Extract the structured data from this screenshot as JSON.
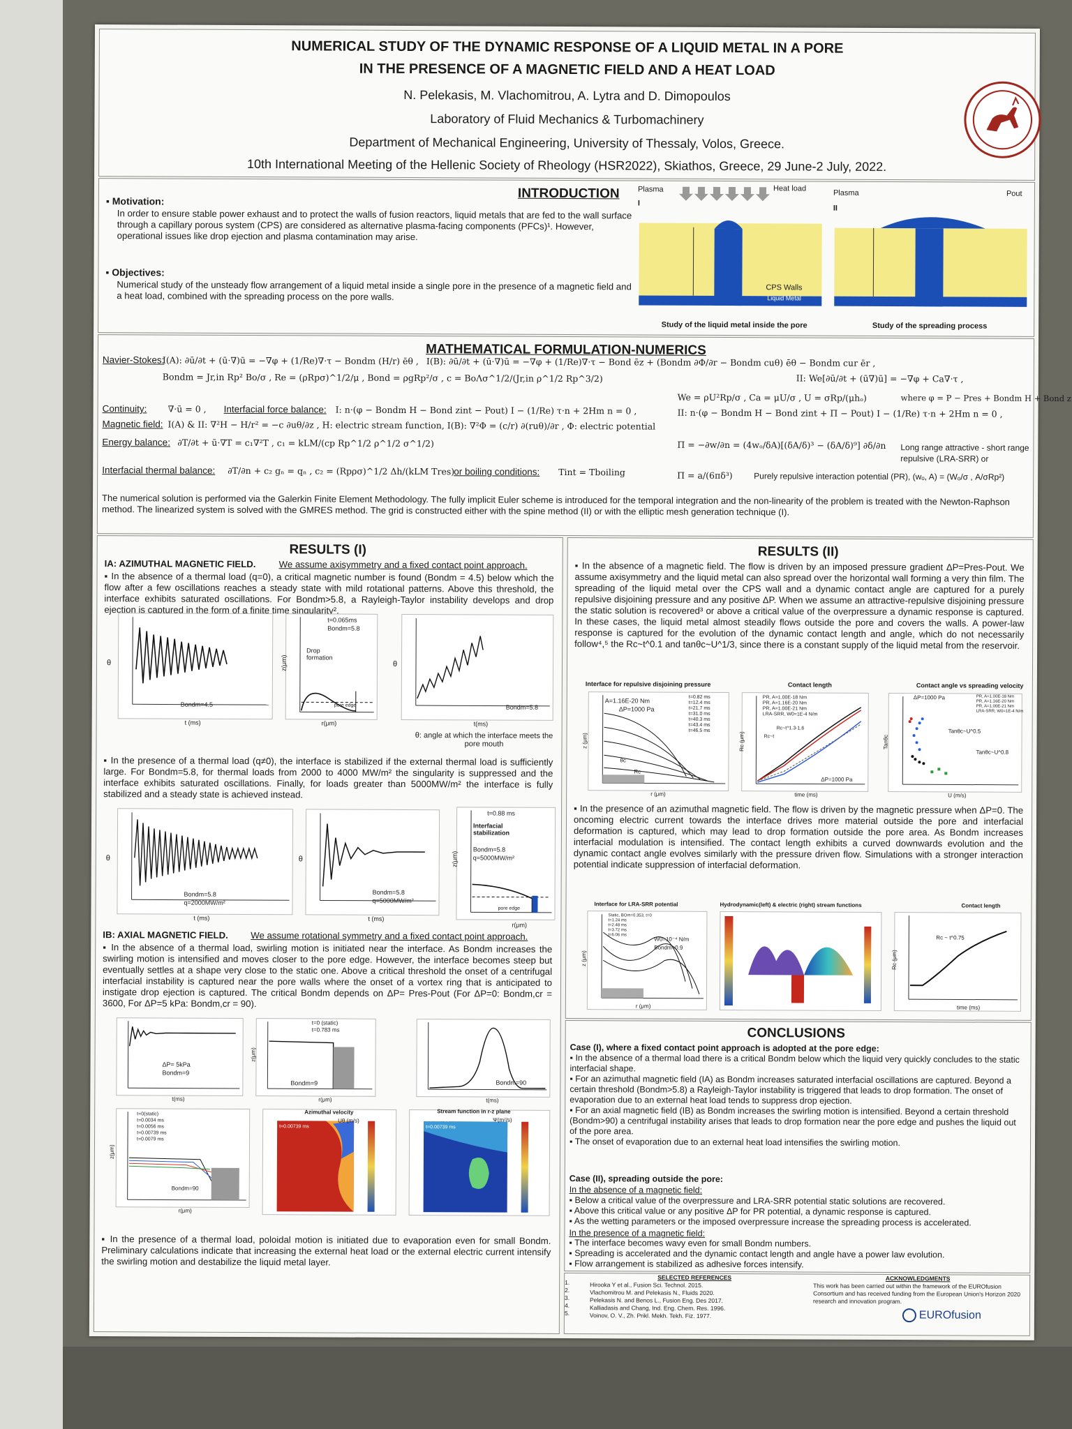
{
  "header": {
    "title_line1": "NUMERICAL STUDY OF THE DYNAMIC RESPONSE OF A LIQUID METAL IN A PORE",
    "title_line2": "IN THE PRESENCE OF A MAGNETIC FIELD AND A HEAT LOAD",
    "authors": "N. Pelekasis, M. Vlachomitrou, A. Lytra and D. Dimopoulos",
    "lab": "Laboratory of Fluid Mechanics & Turbomachinery",
    "department": "Department of Mechanical Engineering, University of Thessaly, Volos, Greece.",
    "meeting": "10th International Meeting of the Hellenic Society of Rheology (HSR2022), Skiathos, Greece, 29 June-2 July, 2022."
  },
  "intro": {
    "heading": "INTRODUCTION",
    "motivation_label": "Motivation:",
    "motivation_text": "In order to ensure stable power exhaust and to protect the walls of fusion reactors, liquid metals that are fed to the wall surface through a capillary porous system (CPS) are considered as alternative plasma-facing components (PFCs)¹. However, operational issues like drop ejection and plasma contamination may arise.",
    "objectives_label": "Objectives:",
    "objectives_text": "Numerical study of the unsteady flow arrangement of a liquid metal inside a single pore in the presence of a magnetic field and a heat load, combined with the spreading process on the pore walls.",
    "fig1": {
      "plasma": "Plasma",
      "heat": "Heat load",
      "roman": "I",
      "walls": "CPS Walls",
      "metal": "Liquid Metal",
      "caption": "Study of the liquid metal inside the pore"
    },
    "fig2": {
      "plasma": "Plasma",
      "roman": "II",
      "pout": "Pout",
      "caption": "Study of the spreading process"
    }
  },
  "math": {
    "heading": "MATHEMATICAL FORMULATION-NUMERICS",
    "ns_label": "Navier-Stokes:",
    "ns_eq1": "I(A): ∂ū/∂t + (ū·∇)ū = −∇φ + (1/Re)∇·τ − Bondm (H/r) ēθ ,",
    "ns_eq2": "I(B): ∂ū/∂t + (ū·∇)ū = −∇φ + (1/Re)∇·τ − Bond ēz + (Bondm ∂Φ/∂r − Bondm cuθ) ēθ − Bondm cur ēr ,",
    "ns_eq3": "II: We[∂ū/∂t + (ū∇)ū] = −∇φ + Ca∇·τ ,",
    "dimless": "Bondm = Jr,in Rp² Bo/σ ,  Re = (ρRpσ)^1/2/μ ,  Bond = ρgRp²/σ ,  c = BoΛσ^1/2/(Jr,in ρ^1/2 Rp^3/2)",
    "dimless2": "We = ρU²Rp/σ ,  Ca = μU/σ ,  U = σRp/(μhₒ)",
    "where": "where φ = P − Pres + Bondm H + Bond z",
    "cont_label": "Continuity:",
    "cont_eq": "∇·ū = 0 ,",
    "ifb_label": "Interfacial force balance:",
    "ifb_eq": "I: n·(φ − Bondm H − Bond zint − Pout) I − (1/Re) τ·n + 2Hm n = 0 ,",
    "ifb_eq2": "II: n·(φ − Bondm H − Bond zint + Π − Pout) I − (1/Re) τ·n + 2Hm n = 0 ,",
    "mag_label": "Magnetic field:",
    "mag_eq": "I(A) & II: ∇²H − H/r² = −c ∂uθ/∂z ,  H: electric stream function,   I(B): ∇²Φ = (c/r) ∂(ruθ)/∂r ,  Φ: electric potential",
    "energy_label": "Energy balance:",
    "energy_eq": "∂T/∂t + ū·∇T = c₁∇²T ,    c₁ = kLM/(cp Rp^1/2 ρ^1/2 σ^1/2)",
    "lra_eq": "Π = −∂w/∂n = (4wₒ/δA)[(δA/δ)³ − (δA/δ)⁹] ∂δ/∂n",
    "lra_text": "Long range attractive - short range repulsive (LRA-SRR) or",
    "itb_label": "Interfacial thermal balance:",
    "itb_eq": "∂T/∂n + c₂ gₙ = qₙ ,    c₂ = (Rpρσ)^1/2 Δh/(kLM Tres)",
    "boil_label": "or boiling conditions:",
    "boil_eq": "Tint = Tboiling",
    "pr_eq": "Π = a/(6πδ³)",
    "pr_text": "Purely repulsive interaction potential (PR),  (wₒ, A) = (Wₒ/σ , A/σRp²)",
    "numerics": "The numerical solution is performed via the Galerkin Finite Element Methodology. The fully implicit Euler scheme is introduced for the temporal integration and the non-linearity of the problem is treated with the Newton-Raphson method. The linearized system is solved with the GMRES method. The grid is constructed either with the spine method (II) or with the elliptic mesh generation technique (I)."
  },
  "results1": {
    "heading": "RESULTS (I)",
    "ia_title": "IA: AZIMUTHAL MAGNETIC FIELD.",
    "ia_intro": "We assume axisymmetry and a fixed contact point approach.",
    "ia_p1": "In the absence of a thermal load (q=0), a critical magnetic number is found (Bondm = 4.5) below which the flow after a few oscillations reaches a steady state with mild rotational patterns. Above this threshold, the interface exhibits saturated oscillations. For Bondm>5.8, a Rayleigh-Taylor instability develops and drop ejection is captured in the form of a finite time singularity².",
    "fig_a": {
      "ylabel": "θ",
      "xlabel": "t (ms)",
      "label": "Bondm=4.5"
    },
    "fig_b": {
      "legend": "t=0.065ms",
      "bond": "Bondm=5.8",
      "drop": "Drop formation",
      "ylabel": "z(μm)",
      "xlabel": "r(μm)",
      "edge": "pore edge"
    },
    "fig_c": {
      "ylabel": "θ",
      "xlabel": "t(ms)",
      "label": "Bondm=5.8"
    },
    "theta_note": "θ: angle at which the interface meets the pore mouth",
    "ia_p2": "In the presence of a thermal load (q≠0), the interface is stabilized if the external thermal load is sufficiently large. For Bondm=5.8, for thermal loads from 2000 to 4000 MW/m² the singularity is suppressed and the interface exhibits saturated oscillations. Finally, for loads greater than 5000MW/m² the interface is fully stabilized and a steady state is achieved instead.",
    "fig_d": {
      "ylabel": "θ",
      "xlabel": "t (ms)",
      "label1": "Bondm=5.8",
      "label2": "q=2000MW/m²"
    },
    "fig_e": {
      "ylabel": "θ",
      "xlabel": "t (ms)",
      "label1": "Bondm=5.8",
      "label2": "q=5000MW/m²"
    },
    "fig_f": {
      "legend": "t=0.88 ms",
      "stab": "Interfacial stabilization",
      "bond": "Bondm=5.8",
      "q": "q=5000MW/m²",
      "ylabel": "z(μm)",
      "xlabel": "r(μm)",
      "edge": "pore edge"
    },
    "ib_title": "IB: AXIAL MAGNETIC FIELD.",
    "ib_intro": "We assume rotational symmetry and a fixed contact point approach.",
    "ib_p1": "In the absence of a thermal load, swirling motion is initiated near the interface. As Bondm increases the swirling motion is intensified and moves closer to the pore edge. However, the interface becomes steep but eventually settles at a shape very close to the static one. Above a critical threshold the onset of a centrifugal interfacial instability is captured near the pore walls where the onset of a vortex ring that is anticipated to instigate drop ejection is captured. The critical Bondm depends on ΔP= Pres-Pout (For ΔP=0: Bondm,cr = 3600, For ΔP=5 kPa: Bondm,cr = 90).",
    "fig_g": {
      "label1": "ΔP= 5kPa",
      "label2": "Bondm=9",
      "xlabel": "t(ms)"
    },
    "fig_h": {
      "legend1": "t=0 (static)",
      "legend2": "t=0.783 ms",
      "label": "Bondm=9",
      "ylabel": "z(μm)",
      "xlabel": "r(μm)"
    },
    "fig_i": {
      "label": "Bondm=90",
      "xlabel": "t(ms)"
    },
    "fig_j": {
      "legend": [
        "t=0(static)",
        "t=0.0034 ms",
        "t=0.0056 ms",
        "t=0.00739 ms",
        "t=0.0079 ms"
      ],
      "label": "Bondm=90",
      "ylabel": "z(μm)",
      "xlabel": "r(μm)"
    },
    "fig_k": {
      "title": "Azimuthal velocity",
      "unit": "Uθ (m/s)",
      "label1": "Bondm=90",
      "label2": "t=0.00739 ms"
    },
    "fig_l": {
      "title": "Stream function in r-z plane",
      "unit": "Ψ(m²/s)",
      "label1": "Bondm=90",
      "label2": "t=0.00739 ms"
    },
    "ib_p2": "In the presence of a thermal load, poloidal motion is initiated due to evaporation even for small Bondm. Preliminary calculations indicate that increasing the external heat load or the external electric current intensify the swirling motion and destabilize the liquid metal layer."
  },
  "results2": {
    "heading": "RESULTS (II)",
    "p1": "In the absence of a magnetic field. The flow is driven by an imposed pressure gradient ΔP=Pres-Pout. We assume axisymmetry and the liquid metal can also spread over the horizontal wall forming a very thin film. The spreading of the liquid metal over the CPS wall and a dynamic contact angle are captured for a purely repulsive disjoining pressure and any positive ΔP. When we assume an attractive-repulsive disjoining pressure the static solution is recovered³ or above a critical value of the overpressure a dynamic response is captured. In these cases, the liquid metal almost steadily flows outside the pore and covers the walls. A power-law response is captured for the evolution of the dynamic contact length and angle, which do not necessarily follow⁴,⁵ the Rc~t^0.1 and tanθc~U^1/3, since there is a constant supply of the liquid metal from the reservoir.",
    "fig_m": {
      "title": "Interface for repulsive disjoining pressure",
      "a": "A=1.16E-20 Nm",
      "dp": "ΔP=1000 Pa",
      "legend": [
        "t=0.82 ms",
        "t=12.4 ms",
        "t=21.7 ms",
        "t=31.0 ms",
        "t=40.3 ms",
        "t=43.4 ms",
        "t=46.5 ms"
      ],
      "ylabel": "z (μm)",
      "xlabel": "r (μm)",
      "rc": "Rc",
      "theta": "θc"
    },
    "fig_n": {
      "title": "Contact length",
      "legend": [
        "PR, A=1.00E-18 Nm",
        "PR, A=1.16E-20 Nm",
        "PR, A=1.00E-21 Nm",
        "LRA-SRR, W0=1E-4 N/m"
      ],
      "law": "Rc~t^1.3-1.6",
      "law2": "Rc~t",
      "dp": "ΔP=1000 Pa",
      "ylabel": "Rc (μm)",
      "xlabel": "time (ms)"
    },
    "fig_o": {
      "title": "Contact angle vs spreading velocity",
      "dp": "ΔP=1000 Pa",
      "legend": [
        "PR, A=1.00E-18 Nm",
        "PR, A=1.16E-20 Nm",
        "PR, A=1.00E-21 Nm",
        "LRA-SRR, W0=1E-4 N/m"
      ],
      "law1": "Tanθc~U^0.5",
      "law2": "Tanθc~U^0.8",
      "ylabel": "Tanθc",
      "xlabel": "U (m/s)"
    },
    "p2": "In the presence of an azimuthal magnetic field. The flow is driven by the magnetic pressure when ΔP=0. The oncoming electric current towards the interface drives more material outside the pore and interfacial deformation is captured, which may lead to drop formation outside the pore area. As Bondm increases interfacial modulation is intensified. The contact length exhibits a curved downwards evolution and the dynamic contact angle evolves similarly with the pressure driven flow. Simulations with a stronger interaction potential indicate suppression of interfacial deformation.",
    "fig_p": {
      "title": "Interface for LRA-SRR potential",
      "legend": [
        "Static, BOm=0.353, t=0",
        "t=1.24 ms",
        "t=2.48 ms",
        "t=3.72 ms",
        "t=6.06 ms"
      ],
      "w": "W0=10⁻⁴ N/m",
      "bond": "Bondm=0.9",
      "ylabel": "z (μm)",
      "xlabel": "r (μm)"
    },
    "fig_q": {
      "title": "Hydrodynamic(left) & electric (right) stream functions"
    },
    "fig_r": {
      "title": "Contact length",
      "law": "Rc ~ t^0.75",
      "ylabel": "Rc (μm)",
      "xlabel": "time (ms)"
    }
  },
  "conclusions": {
    "heading": "CONCLUSIONS",
    "case1": "Case (I), where a fixed contact point approach is adopted at the pore edge:",
    "c1_items": [
      "In the absence of a thermal load there is a critical Bondm below which the liquid very quickly concludes to the static interfacial shape.",
      "For an azimuthal magnetic field (IA) as Bondm increases saturated interfacial oscillations are captured. Beyond a certain threshold (Bondm>5.8) a Rayleigh-Taylor instability is triggered that leads to drop formation. The onset of evaporation due to an external heat load tends to suppress drop ejection.",
      "For an axial magnetic field (IB) as Bondm increases the swirling motion is intensified. Beyond a certain threshold (Bondm>90) a centrifugal instability arises that leads to drop formation near the pore edge and pushes the liquid out of the pore area.",
      "The onset of evaporation due to an external heat load intensifies the swirling motion."
    ],
    "case2": "Case (II), spreading outside the pore:",
    "c2_sub1": "In the absence of a magnetic field:",
    "c2_items1": [
      "Below a critical value of the overpressure and LRA-SRR potential static solutions are recovered.",
      "Above this critical value or any positive ΔP for PR potential, a dynamic response is captured.",
      "As the wetting parameters or the imposed overpressure increase the spreading process is accelerated."
    ],
    "c2_sub2": "In the presence of a magnetic field:",
    "c2_items2": [
      "The interface becomes wavy even for small Bondm numbers.",
      "Spreading is accelerated and the dynamic contact length and angle have a power law evolution.",
      "Flow arrangement is stabilized as adhesive forces intensify."
    ]
  },
  "references": {
    "heading": "SELECTED REFERENCES",
    "items": [
      "Hirooka Y et al., Fusion Sci. Technol. 2015.",
      "Vlachomitrou M. and Pelekasis N., Fluids 2020.",
      "Pelekasis N. and Benos L., Fusion Eng. Des 2017.",
      "Kalliadasis and Chang, Ind. Eng. Chem. Res. 1996.",
      "Voinov, O. V., Zh. Prikl. Mekh. Tekh. Fiz. 1977."
    ],
    "numbers": [
      "1.",
      "2.",
      "3.",
      "4.",
      "5."
    ]
  },
  "ack": {
    "heading": "ACKNOWLEDGMENTS",
    "text": "This work has been carried out within the framework of the EUROfusion Consortium and has received funding from the European Union's Horizon 2020 research and innovation program.",
    "logo_text": "EUROfusion"
  },
  "colors": {
    "metal_blue": "#1c4fb5",
    "wall_yellow": "#f4ea8a",
    "logo_red": "#a0271d"
  }
}
